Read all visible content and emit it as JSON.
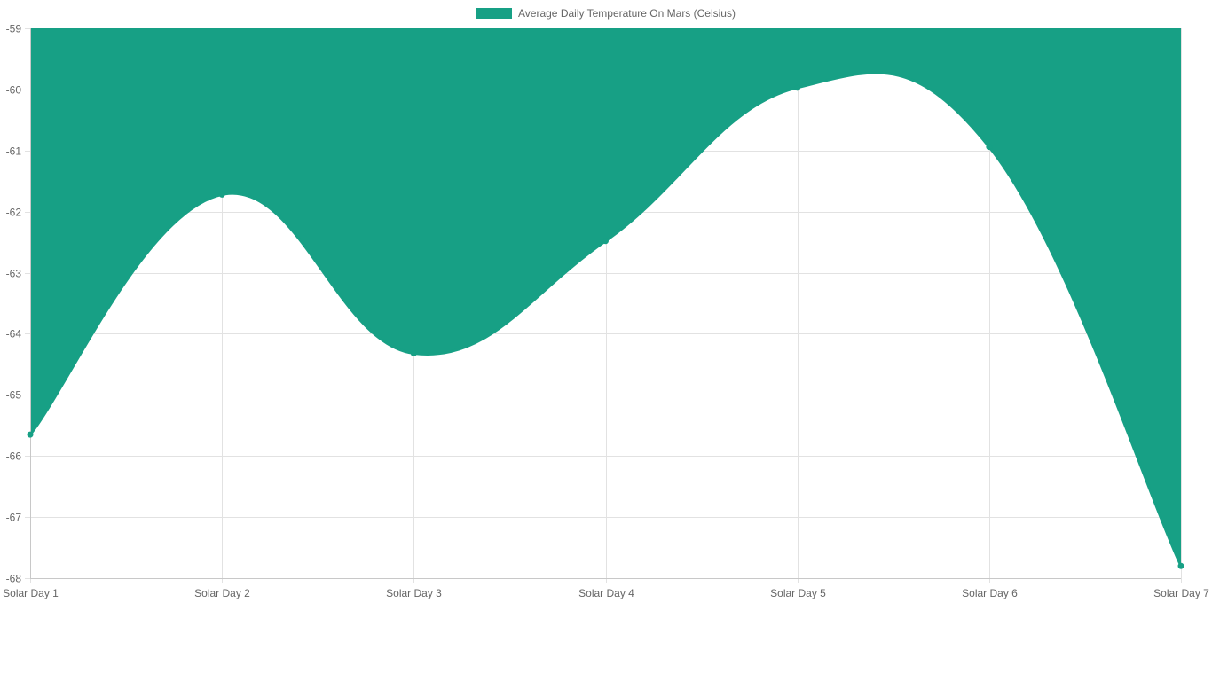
{
  "chart_data": {
    "type": "area",
    "title": "",
    "xlabel": "",
    "ylabel": "",
    "categories": [
      "Solar Day 1",
      "Solar Day 2",
      "Solar Day 3",
      "Solar Day 4",
      "Solar Day 5",
      "Solar Day 6",
      "Solar Day 7"
    ],
    "series": [
      {
        "name": "Average Daily Temperature On Mars (Celsius)",
        "values": [
          -65.65,
          -61.72,
          -64.32,
          -62.48,
          -59.97,
          -60.94,
          -67.8
        ],
        "color": "#17a085",
        "fill": "top"
      }
    ],
    "ylim": [
      -68,
      -59
    ],
    "yticks": [
      -59,
      -60,
      -61,
      -62,
      -63,
      -64,
      -65,
      -66,
      -67,
      -68
    ],
    "grid": true,
    "legend_position": "top",
    "line_style": "smooth"
  }
}
